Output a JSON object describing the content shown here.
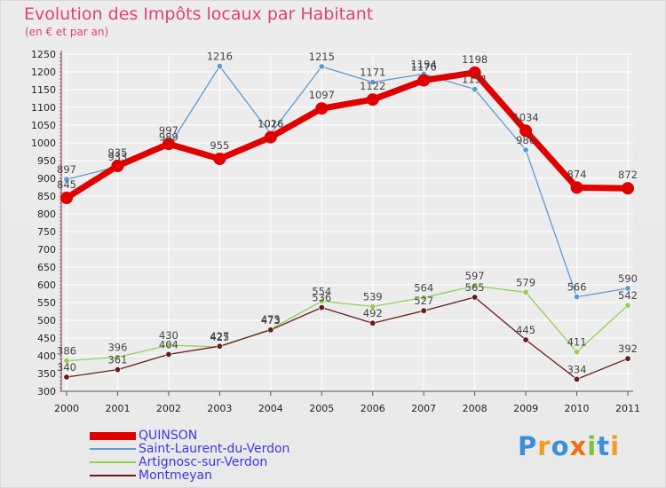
{
  "title": "Evolution des Impôts locaux par Habitant",
  "subtitle": "(en € et par an)",
  "brand": {
    "text": "Proxiti",
    "letters": [
      {
        "ch": "P",
        "color": "#3b8ed8"
      },
      {
        "ch": "r",
        "color": "#f0a020"
      },
      {
        "ch": "o",
        "color": "#3b8ed8"
      },
      {
        "ch": "x",
        "color": "#f07010"
      },
      {
        "ch": "i",
        "color": "#7fc040"
      },
      {
        "ch": "t",
        "color": "#3b8ed8"
      },
      {
        "ch": "i",
        "color": "#f0a020"
      }
    ]
  },
  "chart_data": {
    "type": "line",
    "title": "Evolution des Impôts locaux par Habitant",
    "subtitle": "(en € et par an)",
    "xlabel": "",
    "ylabel": "",
    "x": [
      "2000",
      "2001",
      "2002",
      "2003",
      "2004",
      "2005",
      "2006",
      "2007",
      "2008",
      "2009",
      "2010",
      "2011"
    ],
    "ylim": [
      300,
      1250
    ],
    "yticks": [
      300,
      350,
      400,
      450,
      500,
      550,
      600,
      650,
      700,
      750,
      800,
      850,
      900,
      950,
      1000,
      1050,
      1100,
      1150,
      1200,
      1250
    ],
    "grid": true,
    "legend_position": "bottom-left",
    "series": [
      {
        "name": "Saint-Laurent-du-Verdon",
        "color": "#5b9bd5",
        "values": [
          897,
          933,
          989,
          1216,
          1026,
          1215,
          1171,
          1194,
          1151,
          980,
          566,
          590
        ]
      },
      {
        "name": "Artignosc-sur-Verdon",
        "color": "#92d050",
        "values": [
          386,
          396,
          430,
          425,
          475,
          554,
          539,
          564,
          597,
          579,
          411,
          542
        ]
      },
      {
        "name": "Montmeyan",
        "color": "#6b1a1a",
        "values": [
          340,
          361,
          404,
          427,
          473,
          536,
          492,
          527,
          565,
          445,
          334,
          392
        ]
      },
      {
        "name": "QUINSON",
        "color": "#e00000",
        "values": [
          845,
          935,
          997,
          955,
          1016,
          1097,
          1122,
          1176,
          1198,
          1034,
          874,
          872
        ]
      }
    ],
    "legend": [
      {
        "name": "QUINSON",
        "color": "#e00000"
      },
      {
        "name": "Saint-Laurent-du-Verdon",
        "color": "#5b9bd5"
      },
      {
        "name": "Artignosc-sur-Verdon",
        "color": "#92d050"
      },
      {
        "name": "Montmeyan",
        "color": "#6b1a1a"
      }
    ]
  }
}
